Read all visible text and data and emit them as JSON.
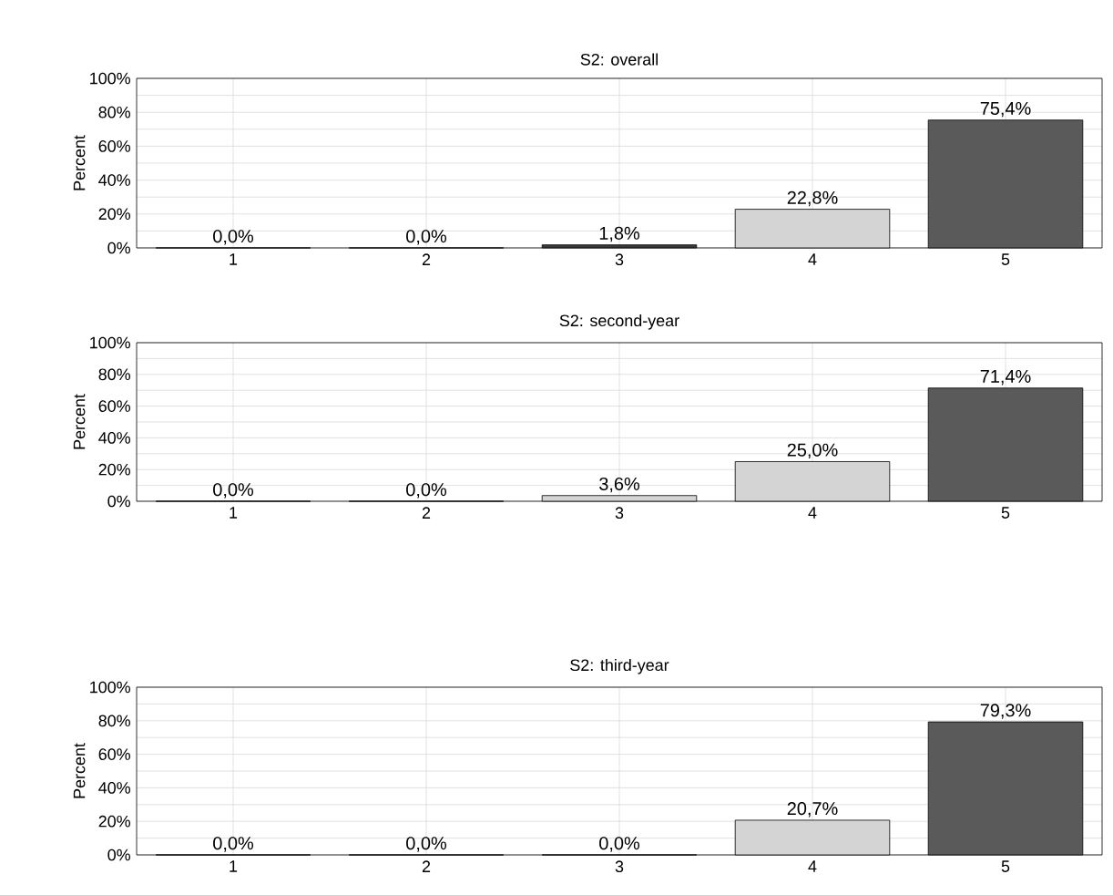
{
  "chart_data": [
    {
      "type": "bar",
      "title": "S2: overall",
      "ylabel": "Percent",
      "categories": [
        "1",
        "2",
        "3",
        "4",
        "5"
      ],
      "values": [
        0,
        0,
        1.8,
        22.8,
        75.4
      ],
      "value_labels": [
        "0,0%",
        "0,0%",
        "1,8%",
        "22,8%",
        "75,4%"
      ],
      "colors": [
        "#d4d4d4",
        "#d4d4d4",
        "#3a3a3a",
        "#d4d4d4",
        "#5a5a5a"
      ],
      "ylim": [
        0,
        100
      ],
      "yticks": [
        {
          "value": 0,
          "label": "0%"
        },
        {
          "value": 10,
          "label": null
        },
        {
          "value": 20,
          "label": "20%"
        },
        {
          "value": 30,
          "label": null
        },
        {
          "value": 40,
          "label": "40%"
        },
        {
          "value": 50,
          "label": null
        },
        {
          "value": 60,
          "label": "60%"
        },
        {
          "value": 70,
          "label": null
        },
        {
          "value": 80,
          "label": "80%"
        },
        {
          "value": 90,
          "label": null
        },
        {
          "value": 100,
          "label": "100%"
        }
      ],
      "grid": true
    },
    {
      "type": "bar",
      "title": "S2: second-year",
      "ylabel": "Percent",
      "categories": [
        "1",
        "2",
        "3",
        "4",
        "5"
      ],
      "values": [
        0,
        0,
        3.6,
        25.0,
        71.4
      ],
      "value_labels": [
        "0,0%",
        "0,0%",
        "3,6%",
        "25,0%",
        "71,4%"
      ],
      "colors": [
        "#d4d4d4",
        "#d4d4d4",
        "#d4d4d4",
        "#d4d4d4",
        "#5a5a5a"
      ],
      "ylim": [
        0,
        100
      ],
      "yticks": [
        {
          "value": 0,
          "label": "0%"
        },
        {
          "value": 10,
          "label": null
        },
        {
          "value": 20,
          "label": "20%"
        },
        {
          "value": 30,
          "label": null
        },
        {
          "value": 40,
          "label": "40%"
        },
        {
          "value": 50,
          "label": null
        },
        {
          "value": 60,
          "label": "60%"
        },
        {
          "value": 70,
          "label": null
        },
        {
          "value": 80,
          "label": "80%"
        },
        {
          "value": 90,
          "label": null
        },
        {
          "value": 100,
          "label": "100%"
        }
      ],
      "grid": true
    },
    {
      "type": "bar",
      "title": "S2: third-year",
      "ylabel": "Percent",
      "categories": [
        "1",
        "2",
        "3",
        "4",
        "5"
      ],
      "values": [
        0,
        0,
        0,
        20.7,
        79.3
      ],
      "value_labels": [
        "0,0%",
        "0,0%",
        "0,0%",
        "20,7%",
        "79,3%"
      ],
      "colors": [
        "#d4d4d4",
        "#d4d4d4",
        "#d4d4d4",
        "#d4d4d4",
        "#5a5a5a"
      ],
      "ylim": [
        0,
        100
      ],
      "yticks": [
        {
          "value": 0,
          "label": "0%"
        },
        {
          "value": 10,
          "label": null
        },
        {
          "value": 20,
          "label": "20%"
        },
        {
          "value": 30,
          "label": null
        },
        {
          "value": 40,
          "label": "40%"
        },
        {
          "value": 50,
          "label": null
        },
        {
          "value": 60,
          "label": "60%"
        },
        {
          "value": 70,
          "label": null
        },
        {
          "value": 80,
          "label": "80%"
        },
        {
          "value": 90,
          "label": null
        },
        {
          "value": 100,
          "label": "100%"
        }
      ],
      "grid": true
    }
  ]
}
